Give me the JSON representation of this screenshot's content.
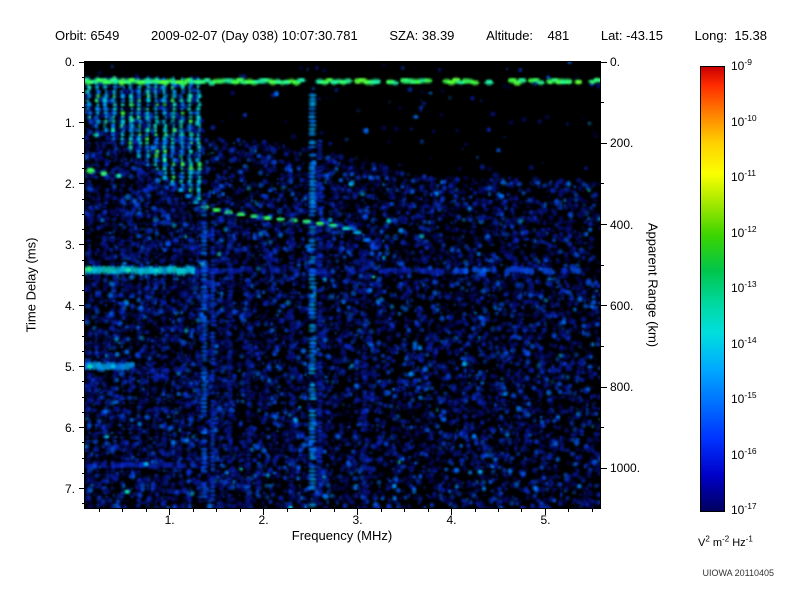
{
  "header": {
    "parts": [
      "Orbit: 6549",
      "2009-02-07 (Day 038) 10:07:30.781",
      "SZA: 38.39",
      "Altitude:    481",
      "Lat: -43.15",
      "Long:  15.38"
    ]
  },
  "watermark": "UIOWA 20110405",
  "chart_data": {
    "type": "heatmap",
    "subtype": "radar-sounder-ionogram-spectrogram",
    "x_axis": {
      "label": "Frequency (MHz)",
      "range": [
        0.1,
        5.58
      ],
      "ticks": [
        1,
        2,
        3,
        4,
        5
      ],
      "tick_labels": [
        "1.",
        "2.",
        "3.",
        "4.",
        "5."
      ],
      "minor_step": 0.25
    },
    "y_axis_left": {
      "label": "Time Delay (ms)",
      "range": [
        0,
        7.32
      ],
      "ticks": [
        0,
        1,
        2,
        3,
        4,
        5,
        6,
        7
      ],
      "tick_labels": [
        "0.",
        "1.",
        "2.",
        "3.",
        "4.",
        "5.",
        "6.",
        "7."
      ],
      "minor_step": 0.25
    },
    "y_axis_right": {
      "label": "Apparent Range (km)",
      "ticks_km": [
        0,
        200,
        400,
        600,
        800,
        1000
      ],
      "tick_labels": [
        "0.",
        "200.",
        "400.",
        "600.",
        "800.",
        "1000."
      ],
      "km_per_ms": 149.896,
      "minor_step_km": 100
    },
    "colorbar": {
      "tick_base": "10",
      "tick_exponents": [
        "-9",
        "-10",
        "-11",
        "-12",
        "-13",
        "-14",
        "-15",
        "-16",
        "-17"
      ],
      "unit_parts": [
        [
          "V",
          "2"
        ],
        [
          "m",
          "-2"
        ],
        [
          "Hz",
          "-1"
        ]
      ],
      "gradient_stops": [
        [
          0,
          "#c80000"
        ],
        [
          4,
          "#ff2a00"
        ],
        [
          10,
          "#ff7a00"
        ],
        [
          17,
          "#ffcf00"
        ],
        [
          24,
          "#faff00"
        ],
        [
          31,
          "#9fe800"
        ],
        [
          38,
          "#3bd400"
        ],
        [
          46,
          "#00c54d"
        ],
        [
          53,
          "#00d89e"
        ],
        [
          60,
          "#00dede"
        ],
        [
          68,
          "#00a9ff"
        ],
        [
          76,
          "#006eff"
        ],
        [
          84,
          "#0031ff"
        ],
        [
          92,
          "#0000c8"
        ],
        [
          100,
          "#000060"
        ]
      ]
    },
    "features": {
      "background_color": "#000000",
      "colormap_stops": [
        [
          0,
          0,
          0,
          0
        ],
        [
          0.14,
          5,
          5,
          80
        ],
        [
          0.3,
          10,
          40,
          200
        ],
        [
          0.46,
          0,
          120,
          255
        ],
        [
          0.62,
          0,
          210,
          225
        ],
        [
          0.76,
          40,
          245,
          150
        ],
        [
          0.88,
          60,
          255,
          70
        ],
        [
          1,
          130,
          255,
          40
        ]
      ],
      "noise": {
        "seed": 123456789,
        "count": 14000
      },
      "noise_start_by_freq": [
        [
          0.1,
          0.24
        ],
        [
          1.3,
          0.24
        ],
        [
          1.38,
          1.25
        ],
        [
          2.0,
          1.3
        ],
        [
          3.0,
          1.55
        ],
        [
          3.6,
          1.85
        ],
        [
          5.58,
          1.95
        ]
      ],
      "harmonic_stripes_mhz": [
        0.14,
        0.23,
        0.32,
        0.41,
        0.5,
        0.59,
        0.68,
        0.77,
        0.86,
        0.95,
        1.04,
        1.13,
        1.22,
        1.31
      ],
      "stripe_bright_until": {
        "base": 0.8,
        "slope_per_mhz": 1.15
      },
      "transmit_band": {
        "delay_ms": 0.32,
        "freq_start": 0.1,
        "freq_end": 5.58,
        "solid_until_mhz": 2.25
      },
      "cusp_trace": [
        [
          0.95,
          1.9,
          0.55
        ],
        [
          1.03,
          2.0,
          0.5
        ],
        [
          1.12,
          2.1,
          0.55
        ],
        [
          1.2,
          2.2,
          0.5
        ],
        [
          1.28,
          2.3,
          0.55
        ]
      ],
      "echo_trace": [
        [
          1.38,
          2.38,
          0.8
        ],
        [
          1.5,
          2.43,
          0.85
        ],
        [
          1.63,
          2.47,
          0.8
        ],
        [
          1.76,
          2.5,
          0.85
        ],
        [
          1.9,
          2.53,
          0.8
        ],
        [
          2.04,
          2.56,
          0.85
        ],
        [
          2.18,
          2.58,
          0.8
        ],
        [
          2.32,
          2.6,
          0.85
        ],
        [
          2.46,
          2.62,
          0.8
        ],
        [
          2.6,
          2.65,
          0.85
        ],
        [
          2.74,
          2.68,
          0.75
        ],
        [
          2.88,
          2.73,
          0.65
        ],
        [
          3.0,
          2.8,
          0.55
        ],
        [
          3.1,
          2.92,
          0.45
        ],
        [
          3.18,
          3.05,
          0.35
        ]
      ],
      "h_lines": [
        {
          "delay_ms": 3.42,
          "f0": 0.1,
          "f1": 1.28,
          "intensity": 0.62,
          "width_ms": 0.07,
          "dashed": false
        },
        {
          "delay_ms": 3.42,
          "f0": 1.3,
          "f1": 4.0,
          "intensity": 0.26,
          "width_ms": 0.05,
          "dashed": true
        },
        {
          "delay_ms": 3.42,
          "f0": 4.0,
          "f1": 5.58,
          "intensity": 0.36,
          "width_ms": 0.06,
          "dashed": true
        },
        {
          "delay_ms": 5.0,
          "f0": 0.1,
          "f1": 0.62,
          "intensity": 0.52,
          "width_ms": 0.07,
          "dashed": false
        },
        {
          "delay_ms": 5.05,
          "f0": 0.62,
          "f1": 1.25,
          "intensity": 0.26,
          "width_ms": 0.05,
          "dashed": true
        },
        {
          "delay_ms": 6.62,
          "f0": 0.1,
          "f1": 1.3,
          "intensity": 0.3,
          "width_ms": 0.05,
          "dashed": true
        }
      ],
      "v_lines": [
        {
          "freq_mhz": 2.52,
          "d0": 0.55,
          "d1": 7.32,
          "intensity": 0.5,
          "width_mhz": 0.04
        },
        {
          "freq_mhz": 2.6,
          "d0": 1.3,
          "d1": 7.32,
          "intensity": 0.28,
          "width_mhz": 0.03
        },
        {
          "freq_mhz": 1.37,
          "d0": 2.3,
          "d1": 7.32,
          "intensity": 0.4,
          "width_mhz": 0.035
        },
        {
          "freq_mhz": 1.46,
          "d0": 2.35,
          "d1": 7.32,
          "intensity": 0.33,
          "width_mhz": 0.03
        },
        {
          "freq_mhz": 1.64,
          "d0": 2.5,
          "d1": 7.32,
          "intensity": 0.24,
          "width_mhz": 0.03
        },
        {
          "freq_mhz": 1.84,
          "d0": 2.6,
          "d1": 7.32,
          "intensity": 0.2,
          "width_mhz": 0.03
        },
        {
          "freq_mhz": 2.3,
          "d0": 2.6,
          "d1": 7.32,
          "intensity": 0.2,
          "width_mhz": 0.03
        },
        {
          "freq_mhz": 3.08,
          "d0": 3.1,
          "d1": 7.32,
          "intensity": 0.22,
          "width_mhz": 0.03
        }
      ],
      "bright_blobs": [
        {
          "f": 0.16,
          "d": 1.78,
          "t": 0.85,
          "r": 2.0
        },
        {
          "f": 0.3,
          "d": 1.83,
          "t": 0.8,
          "r": 1.7
        },
        {
          "f": 0.46,
          "d": 1.87,
          "t": 0.7,
          "r": 1.5
        },
        {
          "f": 0.22,
          "d": 1.2,
          "t": 0.68,
          "r": 1.4
        },
        {
          "f": 0.6,
          "d": 0.95,
          "t": 0.72,
          "r": 1.4
        },
        {
          "f": 0.14,
          "d": 3.4,
          "t": 0.8,
          "r": 1.7
        },
        {
          "f": 0.56,
          "d": 3.42,
          "t": 0.7,
          "r": 1.5
        },
        {
          "f": 0.86,
          "d": 3.42,
          "t": 0.66,
          "r": 1.4
        },
        {
          "f": 0.15,
          "d": 5.0,
          "t": 0.7,
          "r": 1.5
        },
        {
          "f": 0.4,
          "d": 5.0,
          "t": 0.6,
          "r": 1.3
        },
        {
          "f": 0.55,
          "d": 7.05,
          "t": 0.68,
          "r": 1.5
        },
        {
          "f": 0.33,
          "d": 6.15,
          "t": 0.6,
          "r": 1.3
        },
        {
          "f": 0.75,
          "d": 6.6,
          "t": 0.6,
          "r": 1.3
        },
        {
          "f": 2.52,
          "d": 5.3,
          "t": 0.55,
          "r": 1.4
        },
        {
          "f": 4.35,
          "d": 3.42,
          "t": 0.42,
          "r": 1.5
        },
        {
          "f": 4.95,
          "d": 3.4,
          "t": 0.4,
          "r": 1.3
        },
        {
          "f": 3.62,
          "d": 0.9,
          "t": 0.45,
          "r": 1.2
        },
        {
          "f": 4.5,
          "d": 1.45,
          "t": 0.4,
          "r": 1.1
        }
      ]
    }
  }
}
